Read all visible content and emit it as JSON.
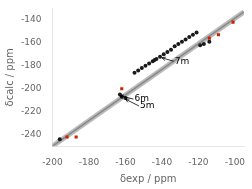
{
  "chart_data": {
    "type": "scatter",
    "xlabel": "δexp / ppm",
    "ylabel": "δcalc / ppm",
    "xlim": [
      -200,
      -95
    ],
    "ylim": [
      -250,
      -130
    ],
    "xticks": [
      -200,
      -180,
      -160,
      -140,
      -120,
      -100
    ],
    "yticks": [
      -240,
      -220,
      -200,
      -180,
      -160,
      -140
    ],
    "grid": false,
    "series": [
      {
        "type": "line",
        "color": "#bbbbbb",
        "x": [
          -200,
          -95
        ],
        "values": [
          -250,
          -133
        ]
      },
      {
        "type": "line",
        "color": "#888888",
        "x": [
          -200,
          -95
        ],
        "values": [
          -250,
          -133
        ]
      },
      {
        "type": "scatter",
        "marker": "circle",
        "color": "#1a1a1a",
        "x": [
          -196,
          -163,
          -162,
          -160,
          -155,
          -153,
          -151,
          -149,
          -147,
          -145,
          -144,
          -143,
          -141,
          -139,
          -137,
          -135,
          -133,
          -131,
          -129,
          -127,
          -125,
          -123,
          -121,
          -119,
          -117,
          -114
        ],
        "values": [
          -244,
          -205,
          -207,
          -208,
          -186,
          -184,
          -182,
          -180,
          -178,
          -176,
          -175,
          -174,
          -172,
          -170,
          -168,
          -166,
          -163,
          -161,
          -159,
          -157,
          -155,
          -153,
          -151,
          -162,
          -161,
          -159
        ]
      },
      {
        "type": "scatter",
        "marker": "square",
        "color": "#cc2200",
        "x": [
          -192,
          -187,
          -162,
          -114,
          -109,
          -101
        ],
        "values": [
          -242,
          -242,
          -200,
          -156,
          -153,
          -142
        ]
      }
    ],
    "annotations": [
      {
        "text": "7m",
        "xy": [
          -140,
          -173
        ],
        "xytext": [
          -133,
          -176
        ]
      },
      {
        "text": "6m",
        "xy": [
          -163,
          -206
        ],
        "xytext": [
          -155,
          -209
        ]
      },
      {
        "text": "5m",
        "xy": [
          -160,
          -209
        ],
        "xytext": [
          -152,
          -215
        ]
      }
    ]
  }
}
